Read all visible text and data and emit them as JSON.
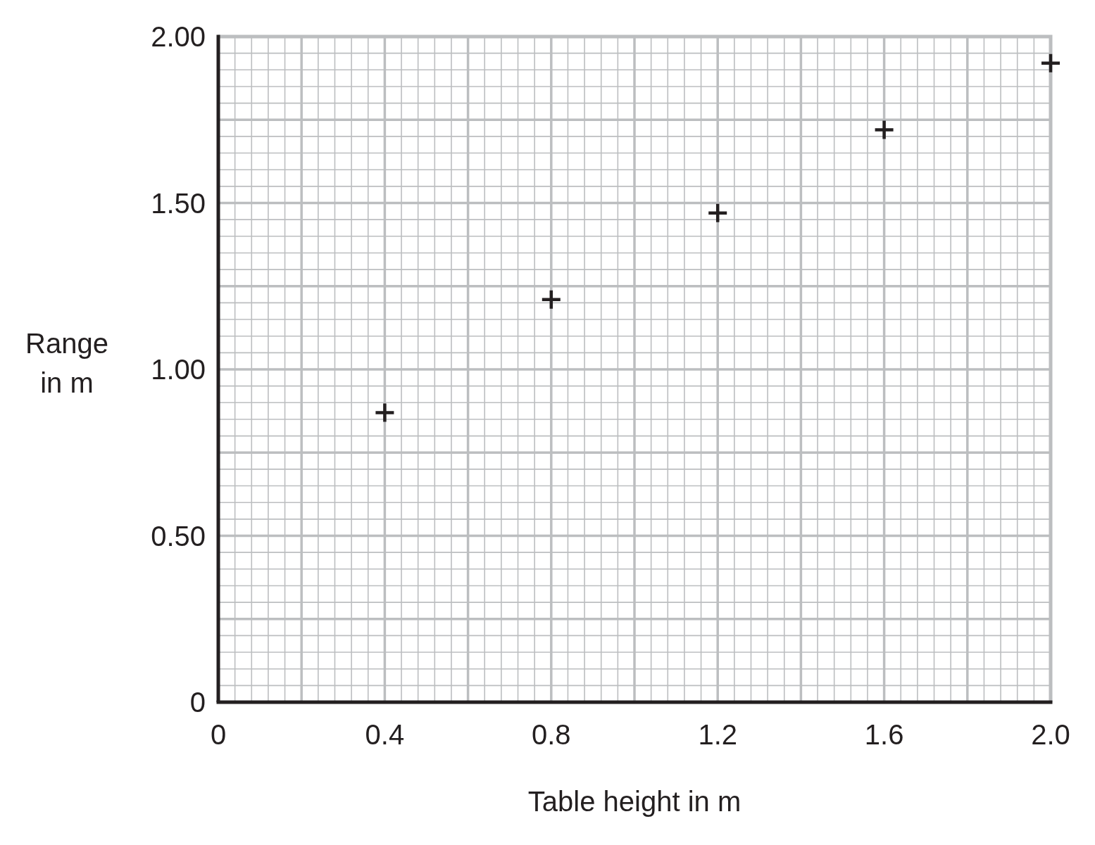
{
  "chart_data": {
    "type": "scatter",
    "xlabel": "Table height in m",
    "ylabel": "Range in m",
    "x": [
      0.4,
      0.8,
      1.2,
      1.6,
      2.0
    ],
    "values": [
      0.87,
      1.21,
      1.47,
      1.72,
      1.92
    ],
    "color": "#231f20",
    "xlim": [
      0,
      2
    ],
    "ylim": [
      0,
      2
    ],
    "xticks": [
      0,
      0.4,
      0.8,
      1.2,
      1.6,
      {
        "value": 2,
        "label": "2.0"
      }
    ],
    "yticks": [
      0,
      {
        "value": 0.5,
        "label": "0.50"
      },
      {
        "value": 1,
        "label": "1.00"
      },
      {
        "value": 1.5,
        "label": "1.50"
      },
      {
        "value": 2,
        "label": "2.00"
      }
    ],
    "grid": true,
    "marker": "cross"
  }
}
